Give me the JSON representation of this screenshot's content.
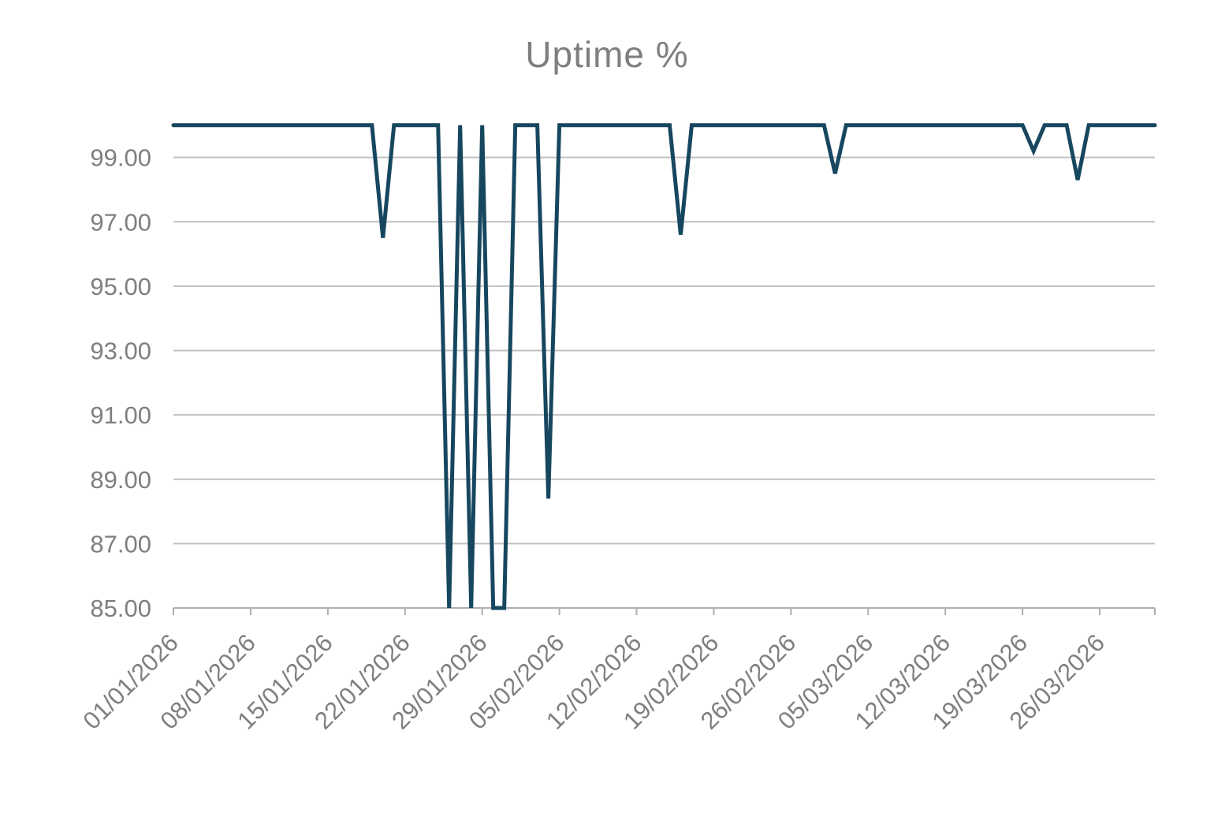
{
  "page": {
    "title": "Uptime %"
  },
  "colors": {
    "background": "#ffffff",
    "line": "#17475f",
    "grid": "#c0c0c0",
    "axis": "#aeaeae",
    "text": "#7f7f7f"
  },
  "chart_data": {
    "type": "line",
    "title": "Uptime %",
    "xlabel": "",
    "ylabel": "",
    "legend": "none",
    "grid": "horizontal-major",
    "ylim": [
      85,
      101
    ],
    "yticks": [
      85,
      87,
      89,
      91,
      93,
      95,
      97,
      99
    ],
    "ytick_labels": [
      "85.00",
      "87.00",
      "89.00",
      "91.00",
      "93.00",
      "95.00",
      "97.00",
      "99.00"
    ],
    "x_tick_interval_days": 7,
    "xtick_labels": [
      "01/01/2026",
      "08/01/2026",
      "15/01/2026",
      "22/01/2026",
      "29/01/2026",
      "05/02/2026",
      "12/02/2026",
      "19/02/2026",
      "26/02/2026",
      "05/03/2026",
      "12/03/2026",
      "19/03/2026",
      "26/03/2026"
    ],
    "x": [
      "01/01/2026",
      "02/01/2026",
      "03/01/2026",
      "04/01/2026",
      "05/01/2026",
      "06/01/2026",
      "07/01/2026",
      "08/01/2026",
      "09/01/2026",
      "10/01/2026",
      "11/01/2026",
      "12/01/2026",
      "13/01/2026",
      "14/01/2026",
      "15/01/2026",
      "16/01/2026",
      "17/01/2026",
      "18/01/2026",
      "19/01/2026",
      "20/01/2026",
      "21/01/2026",
      "22/01/2026",
      "23/01/2026",
      "24/01/2026",
      "25/01/2026",
      "26/01/2026",
      "27/01/2026",
      "28/01/2026",
      "29/01/2026",
      "30/01/2026",
      "31/01/2026",
      "01/02/2026",
      "02/02/2026",
      "03/02/2026",
      "04/02/2026",
      "05/02/2026",
      "06/02/2026",
      "07/02/2026",
      "08/02/2026",
      "09/02/2026",
      "10/02/2026",
      "11/02/2026",
      "12/02/2026",
      "13/02/2026",
      "14/02/2026",
      "15/02/2026",
      "16/02/2026",
      "17/02/2026",
      "18/02/2026",
      "19/02/2026",
      "20/02/2026",
      "21/02/2026",
      "22/02/2026",
      "23/02/2026",
      "24/02/2026",
      "25/02/2026",
      "26/02/2026",
      "27/02/2026",
      "28/02/2026",
      "01/03/2026",
      "02/03/2026",
      "03/03/2026",
      "04/03/2026",
      "05/03/2026",
      "06/03/2026",
      "07/03/2026",
      "08/03/2026",
      "09/03/2026",
      "10/03/2026",
      "11/03/2026",
      "12/03/2026",
      "13/03/2026",
      "14/03/2026",
      "15/03/2026",
      "16/03/2026",
      "17/03/2026",
      "18/03/2026",
      "19/03/2026",
      "20/03/2026",
      "21/03/2026",
      "22/03/2026",
      "23/03/2026",
      "24/03/2026",
      "25/03/2026",
      "26/03/2026",
      "27/03/2026",
      "28/03/2026",
      "29/03/2026",
      "30/03/2026",
      "31/03/2026"
    ],
    "series": [
      {
        "name": "Uptime %",
        "color": "#17475f",
        "values": [
          100,
          100,
          100,
          100,
          100,
          100,
          100,
          100,
          100,
          100,
          100,
          100,
          100,
          100,
          100,
          100,
          100,
          100,
          100,
          96.5,
          100,
          100,
          100,
          100,
          100,
          85,
          100,
          85,
          100,
          85,
          85,
          100,
          100,
          100,
          88.4,
          100,
          100,
          100,
          100,
          100,
          100,
          100,
          100,
          100,
          100,
          100,
          96.6,
          100,
          100,
          100,
          100,
          100,
          100,
          100,
          100,
          100,
          100,
          100,
          100,
          100,
          98.5,
          100,
          100,
          100,
          100,
          100,
          100,
          100,
          100,
          100,
          100,
          100,
          100,
          100,
          100,
          100,
          100,
          100,
          99.2,
          100,
          100,
          100,
          98.3,
          100,
          100,
          100,
          100,
          100,
          100,
          100
        ]
      }
    ]
  }
}
